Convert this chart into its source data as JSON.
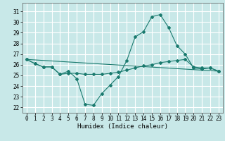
{
  "xlabel": "Humidex (Indice chaleur)",
  "xlim": [
    -0.5,
    23.5
  ],
  "ylim": [
    21.5,
    31.8
  ],
  "yticks": [
    22,
    23,
    24,
    25,
    26,
    27,
    28,
    29,
    30,
    31
  ],
  "xticks": [
    0,
    1,
    2,
    3,
    4,
    5,
    6,
    7,
    8,
    9,
    10,
    11,
    12,
    13,
    14,
    15,
    16,
    17,
    18,
    19,
    20,
    21,
    22,
    23
  ],
  "xtick_labels": [
    "0",
    "1",
    "2",
    "3",
    "4",
    "5",
    "6",
    "7",
    "8",
    "9",
    "10",
    "11",
    "12",
    "13",
    "14",
    "15",
    "16",
    "17",
    "18",
    "19",
    "20",
    "21",
    "22",
    "23"
  ],
  "bg_color": "#c8e8e8",
  "grid_color": "#ffffff",
  "line_color": "#1a7a6e",
  "line1_y": [
    26.5,
    26.1,
    25.8,
    25.8,
    25.1,
    25.4,
    24.7,
    22.3,
    22.2,
    23.3,
    24.1,
    24.9,
    26.4,
    28.6,
    29.1,
    30.5,
    30.7,
    29.5,
    27.8,
    27.0,
    25.7,
    25.6,
    25.7,
    25.4
  ],
  "line2_y": [
    26.5,
    26.1,
    25.8,
    25.8,
    25.1,
    25.2,
    25.2,
    25.1,
    25.1,
    25.1,
    25.2,
    25.3,
    25.5,
    25.7,
    25.9,
    26.0,
    26.2,
    26.3,
    26.4,
    26.5,
    25.8,
    25.7,
    25.7,
    25.4
  ],
  "line3_x": [
    0,
    23
  ],
  "line3_y": [
    26.5,
    25.4
  ]
}
